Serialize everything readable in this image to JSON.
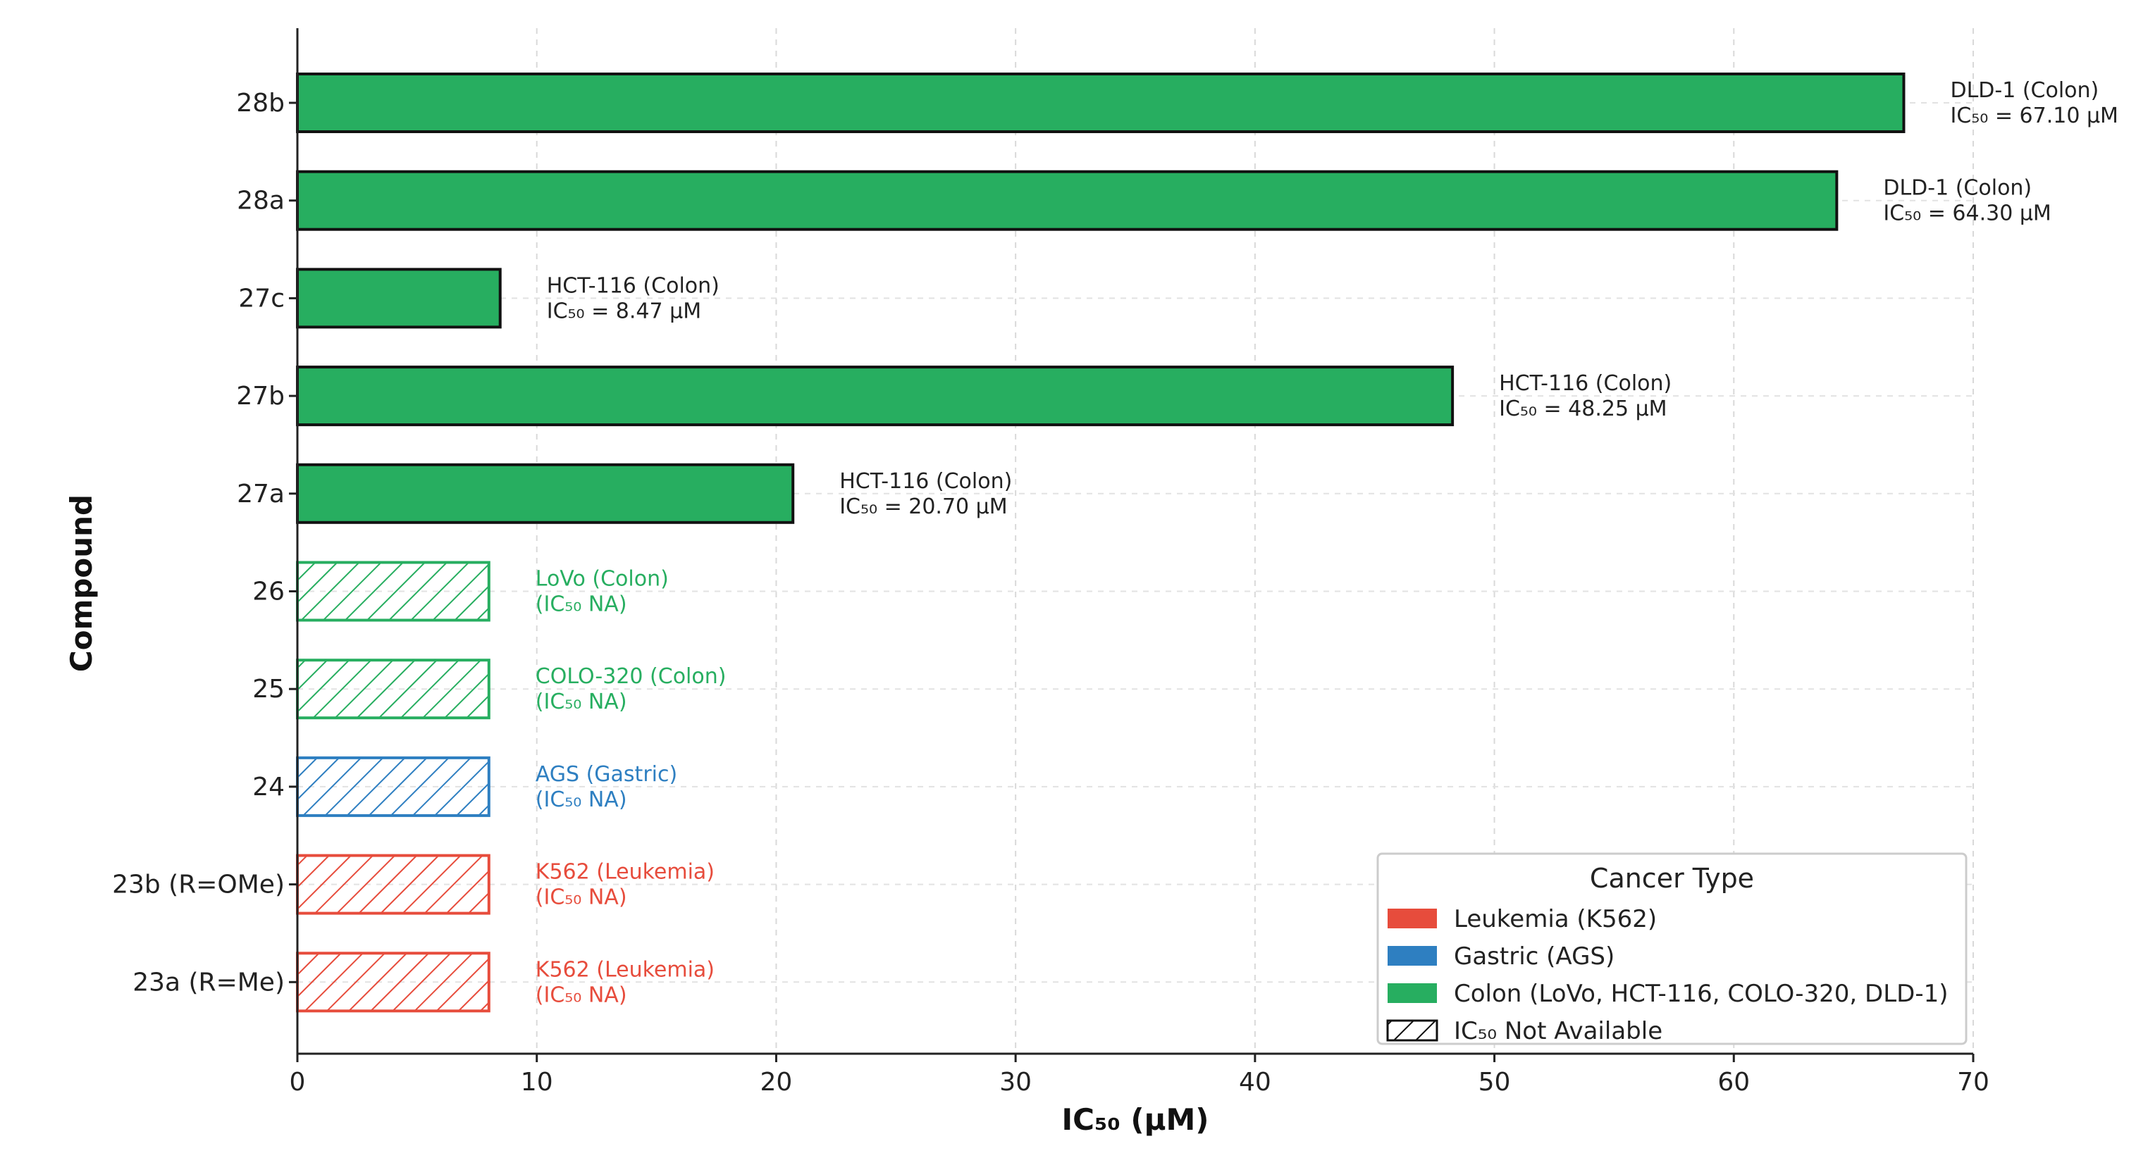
{
  "chart_data": {
    "type": "bar",
    "orientation": "horizontal",
    "xlabel": "IC₅₀ (µM)",
    "ylabel": "Compound",
    "xlim": [
      0,
      70
    ],
    "xticks": [
      0,
      10,
      20,
      30,
      40,
      50,
      60,
      70
    ],
    "grid": true,
    "categories": [
      "23a (R=Me)",
      "23b (R=OMe)",
      "24",
      "25",
      "26",
      "27a",
      "27b",
      "27c",
      "28a",
      "28b"
    ],
    "bars": [
      {
        "compound": "23a (R=Me)",
        "value": 8,
        "available": false,
        "cancer_type": "Leukemia",
        "label_line1": "K562 (Leukemia)",
        "label_line2": "(IC₅₀ NA)"
      },
      {
        "compound": "23b (R=OMe)",
        "value": 8,
        "available": false,
        "cancer_type": "Leukemia",
        "label_line1": "K562 (Leukemia)",
        "label_line2": "(IC₅₀ NA)"
      },
      {
        "compound": "24",
        "value": 8,
        "available": false,
        "cancer_type": "Gastric",
        "label_line1": "AGS (Gastric)",
        "label_line2": "(IC₅₀ NA)"
      },
      {
        "compound": "25",
        "value": 8,
        "available": false,
        "cancer_type": "Colon",
        "label_line1": "COLO-320 (Colon)",
        "label_line2": "(IC₅₀ NA)"
      },
      {
        "compound": "26",
        "value": 8,
        "available": false,
        "cancer_type": "Colon",
        "label_line1": "LoVo (Colon)",
        "label_line2": "(IC₅₀ NA)"
      },
      {
        "compound": "27a",
        "value": 20.7,
        "available": true,
        "cancer_type": "Colon",
        "label_line1": "HCT-116 (Colon)",
        "label_line2": "IC₅₀ = 20.70 µM"
      },
      {
        "compound": "27b",
        "value": 48.25,
        "available": true,
        "cancer_type": "Colon",
        "label_line1": "HCT-116 (Colon)",
        "label_line2": "IC₅₀ = 48.25 µM"
      },
      {
        "compound": "27c",
        "value": 8.47,
        "available": true,
        "cancer_type": "Colon",
        "label_line1": "HCT-116 (Colon)",
        "label_line2": "IC₅₀ = 8.47 µM"
      },
      {
        "compound": "28a",
        "value": 64.3,
        "available": true,
        "cancer_type": "Colon",
        "label_line1": "DLD-1 (Colon)",
        "label_line2": "IC₅₀ = 64.30 µM"
      },
      {
        "compound": "28b",
        "value": 67.1,
        "available": true,
        "cancer_type": "Colon",
        "label_line1": "DLD-1 (Colon)",
        "label_line2": "IC₅₀ = 67.10 µM"
      }
    ],
    "colors": {
      "Leukemia": "#e74c3c",
      "Gastric": "#2e7fc1",
      "Colon": "#27ae60",
      "available_label": "#222222"
    },
    "legend": {
      "title": "Cancer Type",
      "placement": "bottom-right",
      "entries": [
        {
          "label": "Leukemia (K562)",
          "key": "Leukemia",
          "hatched": false
        },
        {
          "label": "Gastric (AGS)",
          "key": "Gastric",
          "hatched": false
        },
        {
          "label": "Colon (LoVo, HCT-116, COLO-320, DLD-1)",
          "key": "Colon",
          "hatched": false
        },
        {
          "label": "IC₅₀ Not Available",
          "key": "NA",
          "hatched": true
        }
      ]
    }
  }
}
